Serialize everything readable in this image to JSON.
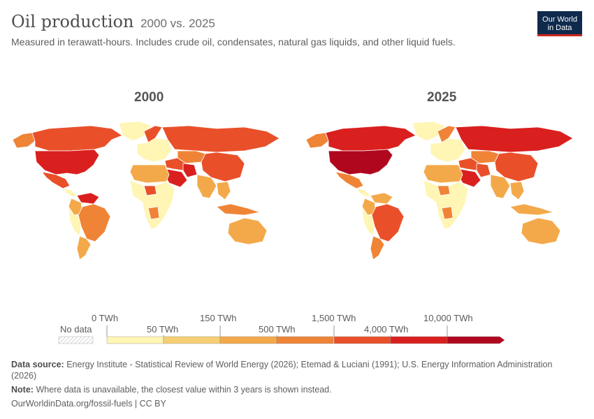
{
  "header": {
    "title": "Oil production",
    "title_suffix": "2000 vs. 2025",
    "subtitle": "Measured in terawatt-hours. Includes crude oil, condensates, natural gas liquids, and other liquid fuels."
  },
  "logo": {
    "line1": "Our World",
    "line2": "in Data"
  },
  "maps": [
    {
      "year_label": "2000"
    },
    {
      "year_label": "2025"
    }
  ],
  "legend": {
    "no_data_label": "No data",
    "upper_labels": [
      "0 TWh",
      "150 TWh",
      "1,500 TWh",
      "10,000 TWh"
    ],
    "lower_labels": [
      "50 TWh",
      "500 TWh",
      "4,000 TWh"
    ],
    "colors": [
      "#fff5b4",
      "#f6cf74",
      "#f3a94a",
      "#ef8437",
      "#e9502a",
      "#d9201f",
      "#b0071f"
    ]
  },
  "footer": {
    "source_label": "Data source:",
    "source_text": "Energy Institute - Statistical Review of World Energy (2026); Etemad & Luciani (1991); U.S. Energy Information Administration (2026)",
    "note_label": "Note:",
    "note_text": "Where data is unavailable, the closest value within 3 years is shown instead.",
    "url_text": "OurWorldinData.org/fossil-fuels | CC BY"
  },
  "map_fills": {
    "2000": {
      "canada": "#e9502a",
      "alaska": "#ef8437",
      "usa": "#d9201f",
      "mexico": "#e9502a",
      "central_america": "#fff5b4",
      "venezuela": "#d9201f",
      "colombia": "#f3a94a",
      "brazil": "#ef8437",
      "south_america": "#fff5b4",
      "argentina": "#f3a94a",
      "greenland": "#fff5b4",
      "europe": "#fff5b4",
      "norway": "#e9502a",
      "russia": "#e9502a",
      "kazakhstan": "#ef8437",
      "middle_east": "#e9502a",
      "saudi": "#d9201f",
      "iran": "#d9201f",
      "north_africa": "#f3a94a",
      "africa": "#fff5b4",
      "nigeria": "#e9502a",
      "angola": "#ef8437",
      "china": "#e9502a",
      "india": "#f3a94a",
      "southeast_asia": "#f3a94a",
      "indonesia": "#ef8437",
      "australia": "#f3a94a"
    },
    "2025": {
      "canada": "#d9201f",
      "alaska": "#ef8437",
      "usa": "#b0071f",
      "mexico": "#ef8437",
      "central_america": "#fff5b4",
      "venezuela": "#f3a94a",
      "colombia": "#f3a94a",
      "brazil": "#e9502a",
      "south_america": "#fff5b4",
      "argentina": "#ef8437",
      "greenland": "#fff5b4",
      "europe": "#fff5b4",
      "norway": "#ef8437",
      "russia": "#d9201f",
      "kazakhstan": "#ef8437",
      "middle_east": "#e9502a",
      "saudi": "#d9201f",
      "iran": "#e9502a",
      "north_africa": "#f3a94a",
      "africa": "#fff5b4",
      "nigeria": "#ef8437",
      "angola": "#ef8437",
      "china": "#e9502a",
      "india": "#f3a94a",
      "southeast_asia": "#f3a94a",
      "indonesia": "#f3a94a",
      "australia": "#f3a94a"
    }
  }
}
